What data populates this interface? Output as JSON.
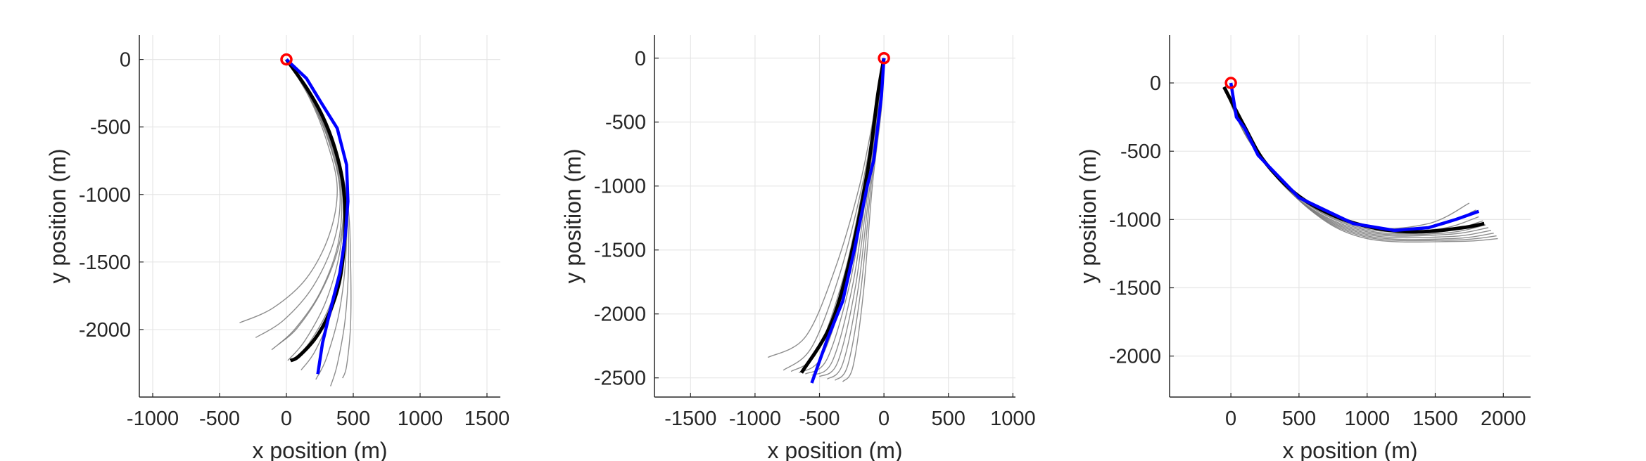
{
  "chart_data": [
    {
      "type": "line",
      "xlabel": "x position (m)",
      "ylabel": "y position (m)",
      "xlim": [
        -1100,
        1600
      ],
      "ylim": [
        -2500,
        180
      ],
      "xticks": [
        -1000,
        -500,
        0,
        500,
        1000,
        1500
      ],
      "yticks": [
        0,
        -500,
        -1000,
        -1500,
        -2000
      ],
      "xtick_labels": [
        "-1000",
        "-500",
        "0",
        "500",
        "1000",
        "1500"
      ],
      "ytick_labels": [
        "0",
        "-500",
        "-1000",
        "-1500",
        "-2000"
      ],
      "grid": true,
      "start": [
        0,
        0
      ],
      "ensemble": [
        [
          [
            0,
            0
          ],
          [
            170,
            -280
          ],
          [
            300,
            -600
          ],
          [
            380,
            -950
          ],
          [
            320,
            -1300
          ],
          [
            150,
            -1620
          ],
          [
            -100,
            -1840
          ],
          [
            -350,
            -1950
          ]
        ],
        [
          [
            0,
            0
          ],
          [
            180,
            -290
          ],
          [
            320,
            -620
          ],
          [
            400,
            -970
          ],
          [
            360,
            -1330
          ],
          [
            200,
            -1680
          ],
          [
            -20,
            -1930
          ],
          [
            -230,
            -2060
          ]
        ],
        [
          [
            0,
            0
          ],
          [
            185,
            -300
          ],
          [
            330,
            -640
          ],
          [
            410,
            -1000
          ],
          [
            385,
            -1370
          ],
          [
            250,
            -1730
          ],
          [
            60,
            -2000
          ],
          [
            -110,
            -2150
          ]
        ],
        [
          [
            0,
            0
          ],
          [
            190,
            -300
          ],
          [
            340,
            -650
          ],
          [
            420,
            -1010
          ],
          [
            405,
            -1390
          ],
          [
            300,
            -1780
          ],
          [
            140,
            -2080
          ],
          [
            10,
            -2230
          ]
        ],
        [
          [
            0,
            0
          ],
          [
            195,
            -310
          ],
          [
            350,
            -660
          ],
          [
            430,
            -1030
          ],
          [
            425,
            -1420
          ],
          [
            350,
            -1830
          ],
          [
            220,
            -2150
          ],
          [
            110,
            -2300
          ]
        ],
        [
          [
            0,
            0
          ],
          [
            200,
            -310
          ],
          [
            360,
            -670
          ],
          [
            440,
            -1040
          ],
          [
            445,
            -1450
          ],
          [
            395,
            -1870
          ],
          [
            300,
            -2210
          ],
          [
            220,
            -2370
          ]
        ],
        [
          [
            0,
            0
          ],
          [
            205,
            -320
          ],
          [
            370,
            -680
          ],
          [
            450,
            -1060
          ],
          [
            465,
            -1480
          ],
          [
            440,
            -1920
          ],
          [
            380,
            -2260
          ],
          [
            330,
            -2420
          ]
        ],
        [
          [
            0,
            0
          ],
          [
            210,
            -320
          ],
          [
            380,
            -700
          ],
          [
            460,
            -1080
          ],
          [
            480,
            -1500
          ],
          [
            480,
            -1960
          ],
          [
            450,
            -2270
          ],
          [
            420,
            -2360
          ]
        ],
        [
          [
            0,
            0
          ],
          [
            200,
            -300
          ],
          [
            365,
            -660
          ],
          [
            445,
            -1040
          ],
          [
            430,
            -1430
          ],
          [
            330,
            -1810
          ],
          [
            170,
            -2100
          ],
          [
            40,
            -2230
          ]
        ],
        [
          [
            0,
            0
          ],
          [
            190,
            -295
          ],
          [
            345,
            -645
          ],
          [
            425,
            -1010
          ],
          [
            395,
            -1370
          ],
          [
            260,
            -1720
          ],
          [
            80,
            -1990
          ],
          [
            -60,
            -2110
          ]
        ]
      ],
      "mean_track": [
        [
          0,
          0
        ],
        [
          150,
          -210
        ],
        [
          270,
          -420
        ],
        [
          360,
          -650
        ],
        [
          420,
          -900
        ],
        [
          440,
          -1150
        ],
        [
          430,
          -1400
        ],
        [
          395,
          -1650
        ],
        [
          320,
          -1880
        ],
        [
          220,
          -2060
        ],
        [
          90,
          -2200
        ],
        [
          30,
          -2230
        ]
      ],
      "blue_track": [
        [
          0,
          0
        ],
        [
          150,
          -140
        ],
        [
          260,
          -320
        ],
        [
          380,
          -510
        ],
        [
          450,
          -780
        ],
        [
          460,
          -1050
        ],
        [
          440,
          -1310
        ],
        [
          400,
          -1580
        ],
        [
          330,
          -1850
        ],
        [
          270,
          -2100
        ],
        [
          235,
          -2330
        ]
      ]
    },
    {
      "type": "line",
      "xlabel": "x position (m)",
      "ylabel": "y position (m)",
      "xlim": [
        -1780,
        1020
      ],
      "ylim": [
        -2650,
        180
      ],
      "xticks": [
        -1500,
        -1000,
        -500,
        0,
        500,
        1000
      ],
      "yticks": [
        0,
        -500,
        -1000,
        -1500,
        -2000,
        -2500
      ],
      "xtick_labels": [
        "-1500",
        "-1000",
        "-500",
        "0",
        "500",
        "1000"
      ],
      "ytick_labels": [
        "0",
        "-500",
        "-1000",
        "-1500",
        "-2000",
        "-2500"
      ],
      "grid": true,
      "start": [
        0,
        0
      ],
      "ensemble": [
        [
          [
            0,
            0
          ],
          [
            -70,
            -400
          ],
          [
            -190,
            -1000
          ],
          [
            -380,
            -1650
          ],
          [
            -610,
            -2180
          ],
          [
            -900,
            -2340
          ]
        ],
        [
          [
            0,
            0
          ],
          [
            -60,
            -400
          ],
          [
            -170,
            -1000
          ],
          [
            -340,
            -1680
          ],
          [
            -560,
            -2260
          ],
          [
            -780,
            -2440
          ]
        ],
        [
          [
            0,
            0
          ],
          [
            -55,
            -400
          ],
          [
            -160,
            -1000
          ],
          [
            -310,
            -1700
          ],
          [
            -520,
            -2300
          ],
          [
            -720,
            -2450
          ]
        ],
        [
          [
            0,
            0
          ],
          [
            -50,
            -400
          ],
          [
            -150,
            -1000
          ],
          [
            -280,
            -1720
          ],
          [
            -480,
            -2330
          ],
          [
            -660,
            -2460
          ]
        ],
        [
          [
            0,
            0
          ],
          [
            -45,
            -400
          ],
          [
            -140,
            -1000
          ],
          [
            -260,
            -1740
          ],
          [
            -440,
            -2350
          ],
          [
            -610,
            -2470
          ]
        ],
        [
          [
            0,
            0
          ],
          [
            -40,
            -400
          ],
          [
            -130,
            -1000
          ],
          [
            -240,
            -1760
          ],
          [
            -400,
            -2370
          ],
          [
            -560,
            -2480
          ]
        ],
        [
          [
            0,
            0
          ],
          [
            -35,
            -400
          ],
          [
            -120,
            -1000
          ],
          [
            -220,
            -1780
          ],
          [
            -360,
            -2380
          ],
          [
            -500,
            -2490
          ]
        ],
        [
          [
            0,
            0
          ],
          [
            -30,
            -400
          ],
          [
            -110,
            -1000
          ],
          [
            -200,
            -1800
          ],
          [
            -320,
            -2390
          ],
          [
            -440,
            -2510
          ]
        ],
        [
          [
            0,
            0
          ],
          [
            -25,
            -400
          ],
          [
            -100,
            -1000
          ],
          [
            -180,
            -1820
          ],
          [
            -280,
            -2400
          ],
          [
            -380,
            -2520
          ]
        ],
        [
          [
            0,
            0
          ],
          [
            -20,
            -400
          ],
          [
            -90,
            -1000
          ],
          [
            -160,
            -1840
          ],
          [
            -240,
            -2410
          ],
          [
            -320,
            -2530
          ]
        ]
      ],
      "mean_track": [
        [
          0,
          0
        ],
        [
          -50,
          -300
        ],
        [
          -130,
          -900
        ],
        [
          -270,
          -1600
        ],
        [
          -420,
          -2100
        ],
        [
          -640,
          -2460
        ]
      ],
      "blue_track": [
        [
          0,
          0
        ],
        [
          -20,
          -300
        ],
        [
          -80,
          -800
        ],
        [
          -130,
          -1000
        ],
        [
          -230,
          -1500
        ],
        [
          -320,
          -1900
        ],
        [
          -440,
          -2200
        ],
        [
          -560,
          -2540
        ]
      ]
    },
    {
      "type": "line",
      "xlabel": "x position (m)",
      "ylabel": "y position (m)",
      "xlim": [
        -450,
        2200
      ],
      "ylim": [
        -2300,
        350
      ],
      "xticks": [
        0,
        500,
        1000,
        1500,
        2000
      ],
      "yticks": [
        0,
        -500,
        -1000,
        -1500,
        -2000
      ],
      "xtick_labels": [
        "0",
        "500",
        "1000",
        "1500",
        "2000"
      ],
      "ytick_labels": [
        "0",
        "-500",
        "-1000",
        "-1500",
        "-2000"
      ],
      "grid": true,
      "start": [
        0,
        0
      ],
      "ensemble": [
        [
          [
            -50,
            -30
          ],
          [
            150,
            -450
          ],
          [
            500,
            -830
          ],
          [
            1000,
            -1050
          ],
          [
            1450,
            -1030
          ],
          [
            1750,
            -880
          ]
        ],
        [
          [
            -50,
            -30
          ],
          [
            150,
            -450
          ],
          [
            500,
            -840
          ],
          [
            1000,
            -1060
          ],
          [
            1500,
            -1050
          ],
          [
            1800,
            -930
          ]
        ],
        [
          [
            -50,
            -30
          ],
          [
            150,
            -450
          ],
          [
            510,
            -850
          ],
          [
            1000,
            -1070
          ],
          [
            1520,
            -1070
          ],
          [
            1820,
            -980
          ]
        ],
        [
          [
            -50,
            -30
          ],
          [
            150,
            -450
          ],
          [
            520,
            -860
          ],
          [
            1000,
            -1080
          ],
          [
            1540,
            -1090
          ],
          [
            1850,
            -1010
          ]
        ],
        [
          [
            -50,
            -30
          ],
          [
            150,
            -450
          ],
          [
            520,
            -870
          ],
          [
            1000,
            -1090
          ],
          [
            1560,
            -1100
          ],
          [
            1870,
            -1040
          ]
        ],
        [
          [
            -50,
            -30
          ],
          [
            150,
            -450
          ],
          [
            530,
            -880
          ],
          [
            1000,
            -1100
          ],
          [
            1580,
            -1110
          ],
          [
            1890,
            -1060
          ]
        ],
        [
          [
            -50,
            -30
          ],
          [
            150,
            -450
          ],
          [
            540,
            -890
          ],
          [
            1000,
            -1110
          ],
          [
            1600,
            -1125
          ],
          [
            1910,
            -1080
          ]
        ],
        [
          [
            -50,
            -30
          ],
          [
            150,
            -450
          ],
          [
            550,
            -900
          ],
          [
            1000,
            -1120
          ],
          [
            1620,
            -1140
          ],
          [
            1930,
            -1100
          ]
        ],
        [
          [
            -50,
            -30
          ],
          [
            150,
            -450
          ],
          [
            560,
            -910
          ],
          [
            1000,
            -1130
          ],
          [
            1640,
            -1150
          ],
          [
            1950,
            -1120
          ]
        ],
        [
          [
            -50,
            -30
          ],
          [
            150,
            -450
          ],
          [
            570,
            -920
          ],
          [
            1000,
            -1140
          ],
          [
            1660,
            -1160
          ],
          [
            1960,
            -1140
          ]
        ]
      ],
      "mean_track": [
        [
          -50,
          -30
        ],
        [
          100,
          -320
        ],
        [
          250,
          -580
        ],
        [
          500,
          -830
        ],
        [
          800,
          -990
        ],
        [
          1100,
          -1070
        ],
        [
          1400,
          -1090
        ],
        [
          1700,
          -1060
        ],
        [
          1860,
          -1030
        ]
      ],
      "blue_track": [
        [
          0,
          0
        ],
        [
          40,
          -250
        ],
        [
          100,
          -330
        ],
        [
          200,
          -530
        ],
        [
          500,
          -840
        ],
        [
          900,
          -1030
        ],
        [
          1200,
          -1080
        ],
        [
          1450,
          -1060
        ],
        [
          1650,
          -1000
        ],
        [
          1820,
          -940
        ]
      ]
    }
  ]
}
